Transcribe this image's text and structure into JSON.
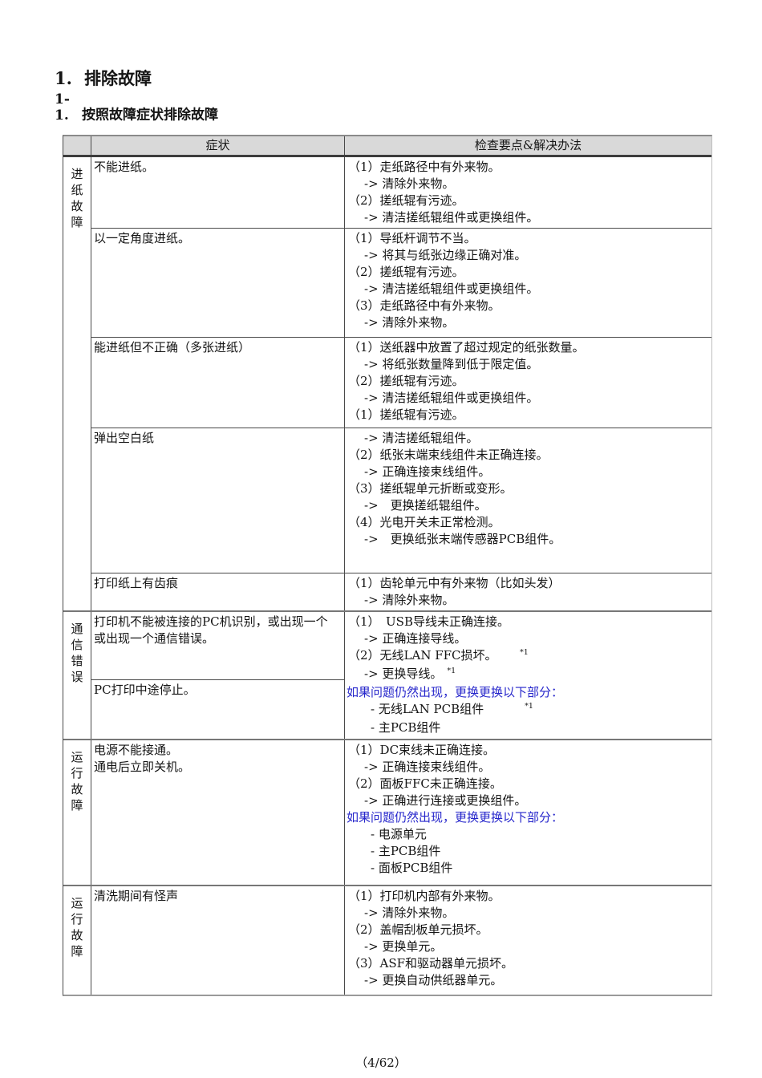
{
  "page": {
    "title_number": "1.",
    "title_text": "排除故障",
    "subtitle_number": "1-1.",
    "subtitle_text": "按照故障症状排除故障",
    "footer": "（4/62）"
  },
  "colors": {
    "note_blue": "#2626cb",
    "header_bg": "#d9d9d9",
    "border_dark": "#4a4a4a"
  },
  "table": {
    "headers": {
      "symptom": "症状",
      "solution": "检查要点&解决办法"
    },
    "sections": [
      {
        "category": "进纸故障",
        "rows": [
          {
            "symptom": [
              "不能进纸。"
            ],
            "solution": [
              {
                "t": "item",
                "text": "（1）走纸路径中有外来物。"
              },
              {
                "t": "arrow",
                "text": "-> 清除外来物。"
              },
              {
                "t": "item",
                "text": "（2）搓纸辊有污迹。"
              },
              {
                "t": "arrow",
                "text": "-> 清洁搓纸辊组件或更换组件。"
              }
            ]
          },
          {
            "symptom": [
              "以一定角度进纸。"
            ],
            "solution": [
              {
                "t": "item",
                "text": "（1）导纸杆调节不当。"
              },
              {
                "t": "arrow",
                "text": "-> 将其与纸张边缘正确对准。"
              },
              {
                "t": "item",
                "text": "（2）搓纸辊有污迹。"
              },
              {
                "t": "arrow",
                "text": "-> 清洁搓纸辊组件或更换组件。"
              },
              {
                "t": "item",
                "text": "（3）走纸路径中有外来物。"
              },
              {
                "t": "arrow",
                "text": "-> 清除外来物。"
              }
            ]
          },
          {
            "symptom": [
              "能进纸但不正确（多张进纸）"
            ],
            "solution": [
              {
                "t": "item",
                "text": "（1）送纸器中放置了超过规定的纸张数量。"
              },
              {
                "t": "arrow",
                "text": "-> 将纸张数量降到低于限定值。"
              },
              {
                "t": "item",
                "text": "（2）搓纸辊有污迹。"
              },
              {
                "t": "arrow",
                "text": "-> 清洁搓纸辊组件或更换组件。"
              },
              {
                "t": "item",
                "text": "（1）搓纸辊有污迹。"
              }
            ]
          },
          {
            "symptom": [
              "弹出空白纸"
            ],
            "solution": [
              {
                "t": "arrow",
                "text": "-> 清洁搓纸辊组件。"
              },
              {
                "t": "item",
                "text": "（2）纸张末端束线组件未正确连接。"
              },
              {
                "t": "arrow",
                "text": "-> 正确连接束线组件。"
              },
              {
                "t": "item",
                "text": "（3）搓纸辊单元折断或变形。"
              },
              {
                "t": "arrow",
                "text": "->　更换搓纸辊组件。"
              },
              {
                "t": "item",
                "text": "（4）光电开关未正常检测。"
              },
              {
                "t": "arrow",
                "text": "->　更换纸张末端传感器PCB组件。"
              }
            ]
          },
          {
            "symptom": [
              "打印纸上有齿痕"
            ],
            "solution": [
              {
                "t": "item",
                "text": "（1）齿轮单元中有外来物（比如头发）"
              },
              {
                "t": "arrow",
                "text": "-> 清除外来物。"
              }
            ]
          }
        ]
      },
      {
        "category": "通信错误",
        "merged": true,
        "symptom_cells": [
          [
            "打印机不能被连接的PC机识别，或出现一个",
            "或出现一个通信错误。"
          ],
          [
            "PC打印中途停止。"
          ]
        ],
        "solution": [
          {
            "t": "item",
            "text": "（1）　USB导线未正确连接。"
          },
          {
            "t": "arrow",
            "text": "-> 正确连接导线。"
          },
          {
            "t": "item",
            "text": "（2）无线LAN FFC损坏。　　",
            "sup": "*1"
          },
          {
            "t": "arrow",
            "text": "-> 更换导线。",
            "sup": "*1"
          },
          {
            "t": "note",
            "text": "如果问题仍然出现，更换更换以下部分："
          },
          {
            "t": "dash",
            "text": "- 无线LAN PCB组件　　　",
            "sup": "*1"
          },
          {
            "t": "dash",
            "text": "- 主PCB组件"
          }
        ]
      },
      {
        "category": "运行故障",
        "rows": [
          {
            "symptom": [
              "电源不能接通。",
              "通电后立即关机。"
            ],
            "solution": [
              {
                "t": "item",
                "text": "（1）DC束线未正确连接。"
              },
              {
                "t": "arrow",
                "text": "-> 正确连接束线组件。"
              },
              {
                "t": "item",
                "text": "（2）面板FFC未正确连接。"
              },
              {
                "t": "arrow",
                "text": "-> 正确进行连接或更换组件。"
              },
              {
                "t": "note",
                "text": "如果问题仍然出现，更换更换以下部分："
              },
              {
                "t": "dash",
                "text": "- 电源单元"
              },
              {
                "t": "dash",
                "text": "- 主PCB组件"
              },
              {
                "t": "dash",
                "text": "- 面板PCB组件"
              }
            ]
          }
        ]
      },
      {
        "category": "运行故障",
        "rows": [
          {
            "symptom": [
              "清洗期间有怪声"
            ],
            "solution": [
              {
                "t": "item",
                "text": "（1）打印机内部有外来物。"
              },
              {
                "t": "arrow",
                "text": "-> 清除外来物。"
              },
              {
                "t": "item",
                "text": "（2）盖帽刮板单元损坏。"
              },
              {
                "t": "arrow",
                "text": "-> 更换单元。"
              },
              {
                "t": "item",
                "text": "（3）ASF和驱动器单元损坏。"
              },
              {
                "t": "arrow",
                "text": "-> 更换自动供纸器单元。"
              }
            ]
          }
        ]
      }
    ]
  }
}
